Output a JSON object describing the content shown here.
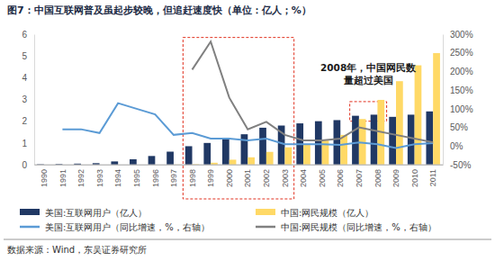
{
  "chart_data": {
    "type": "bar",
    "title": "图7：中国互联网普及虽起步较晚，但追赶速度快（单位：亿人；%）",
    "source": "数据来源：Wind，东吴证券研究所",
    "categories": [
      "1990",
      "1991",
      "1992",
      "1993",
      "1994",
      "1995",
      "1996",
      "1997",
      "1998",
      "1999",
      "2000",
      "2001",
      "2002",
      "2003",
      "2004",
      "2005",
      "2006",
      "2007",
      "2008",
      "2009",
      "2010",
      "2011"
    ],
    "series": [
      {
        "name": "美国:互联网用户（亿人）",
        "type": "bar",
        "color": "#203864",
        "values": [
          0.02,
          0.03,
          0.05,
          0.07,
          0.15,
          0.25,
          0.4,
          0.6,
          0.85,
          1.0,
          1.2,
          1.4,
          1.7,
          1.8,
          1.9,
          2.0,
          2.05,
          2.25,
          2.3,
          2.2,
          2.3,
          2.45
        ]
      },
      {
        "name": "中国:网民规模（亿人）",
        "type": "bar",
        "color": "#ffd966",
        "values": [
          null,
          null,
          null,
          null,
          null,
          null,
          null,
          0.006,
          0.02,
          0.09,
          0.23,
          0.34,
          0.59,
          0.8,
          0.94,
          1.11,
          1.37,
          2.1,
          2.98,
          3.84,
          4.57,
          5.13
        ]
      },
      {
        "name": "美国:互联网用户（同比增速，%，右轴）",
        "type": "line",
        "axis": "y2",
        "color": "#5b9bd5",
        "values": [
          null,
          45,
          45,
          35,
          115,
          100,
          85,
          30,
          35,
          20,
          20,
          15,
          20,
          5,
          5,
          5,
          3,
          10,
          5,
          -5,
          5,
          8
        ]
      },
      {
        "name": "中国:网民规模（同比增速，%，右轴）",
        "type": "line",
        "axis": "y2",
        "color": "#808080",
        "values": [
          null,
          null,
          null,
          null,
          null,
          null,
          null,
          null,
          205,
          280,
          130,
          45,
          65,
          30,
          15,
          15,
          20,
          50,
          40,
          30,
          20,
          10
        ]
      }
    ],
    "ylim": [
      0,
      6
    ],
    "yticks": [
      0,
      1,
      2,
      3,
      4,
      5,
      6
    ],
    "y2lim": [
      -50,
      300
    ],
    "y2ticks": [
      {
        "value": -50,
        "label": "-50%"
      },
      {
        "value": 0,
        "label": "0%"
      },
      {
        "value": 50,
        "label": "50%"
      },
      {
        "value": 100,
        "label": "100%"
      },
      {
        "value": 150,
        "label": "150%"
      },
      {
        "value": 200,
        "label": "200%"
      },
      {
        "value": 250,
        "label": "250%"
      },
      {
        "value": 300,
        "label": "300%"
      }
    ],
    "annotations": [
      {
        "text": [
          "2008年，中国网民数",
          "量超过美国"
        ]
      }
    ],
    "highlights": [
      {
        "from": "1998",
        "to": "2003",
        "ylim": [
          0,
          5.85
        ]
      },
      {
        "from": "2007",
        "to": "2008",
        "ylim": [
          2.0,
          2.9
        ]
      }
    ],
    "grid": false,
    "legend": "bottom"
  }
}
